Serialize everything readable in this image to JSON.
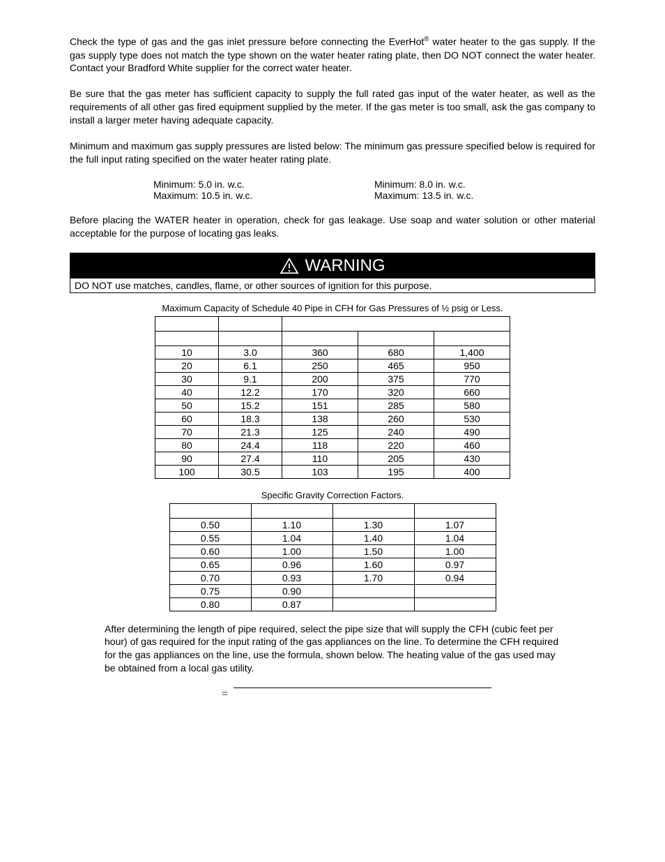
{
  "para1_a": "Check the type of gas and the gas inlet pressure before connecting the EverHot",
  "para1_b": " water heater to the gas supply.  If the gas supply type does not match the type shown on the water heater rating plate, then DO NOT connect the water heater.  Contact your Bradford White supplier for the correct water heater.",
  "para2": "Be sure that the gas meter has sufficient capacity to supply the full rated gas input of the water heater, as well as the requirements of all other gas fired equipment supplied by the meter.  If the gas meter is too small, ask the gas company to install a larger meter having adequate capacity.",
  "para3": "Minimum and maximum gas supply pressures are listed below:  The minimum gas pressure specified below is required for the full input rating specified on the water heater rating plate.",
  "supply_left_min": "Minimum:  5.0 in. w.c.",
  "supply_left_max": "Maximum: 10.5 in. w.c.",
  "supply_right_min": "Minimum:  8.0 in. w.c.",
  "supply_right_max": "Maximum: 13.5 in. w.c.",
  "para4": "Before placing the WATER heater in operation, check for gas leakage.  Use soap and water solution or other material acceptable for the purpose of locating gas leaks.",
  "warning_title": "WARNING",
  "warning_body": "DO NOT use matches, candles, flame, or other sources of ignition for this purpose.",
  "table1_title": "Maximum Capacity of Schedule 40 Pipe in CFH for Gas Pressures of ½ psig or Less.",
  "table1": {
    "rows": [
      [
        "10",
        "3.0",
        "360",
        "680",
        "1,400"
      ],
      [
        "20",
        "6.1",
        "250",
        "465",
        "950"
      ],
      [
        "30",
        "9.1",
        "200",
        "375",
        "770"
      ],
      [
        "40",
        "12.2",
        "170",
        "320",
        "660"
      ],
      [
        "50",
        "15.2",
        "151",
        "285",
        "580"
      ],
      [
        "60",
        "18.3",
        "138",
        "260",
        "530"
      ],
      [
        "70",
        "21.3",
        "125",
        "240",
        "490"
      ],
      [
        "80",
        "24.4",
        "118",
        "220",
        "460"
      ],
      [
        "90",
        "27.4",
        "110",
        "205",
        "430"
      ],
      [
        "100",
        "30.5",
        "103",
        "195",
        "400"
      ]
    ]
  },
  "table2_title": "Specific Gravity Correction Factors.",
  "table2": {
    "rows": [
      [
        "0.50",
        "1.10",
        "1.30",
        "1.07"
      ],
      [
        "0.55",
        "1.04",
        "1.40",
        "1.04"
      ],
      [
        "0.60",
        "1.00",
        "1.50",
        "1.00"
      ],
      [
        "0.65",
        "0.96",
        "1.60",
        "0.97"
      ],
      [
        "0.70",
        "0.93",
        "1.70",
        "0.94"
      ],
      [
        "0.75",
        "0.90",
        "",
        ""
      ],
      [
        "0.80",
        "0.87",
        "",
        ""
      ]
    ]
  },
  "para5": "After determining the length of pipe required, select the pipe size that will supply the CFH (cubic feet per hour) of gas required for the input rating of the gas appliances on the line.  To determine the CFH required for the gas appliances on the line, use the formula, shown below.  The heating value of the gas used may be obtained from a local gas utility.",
  "formula_eq": "="
}
